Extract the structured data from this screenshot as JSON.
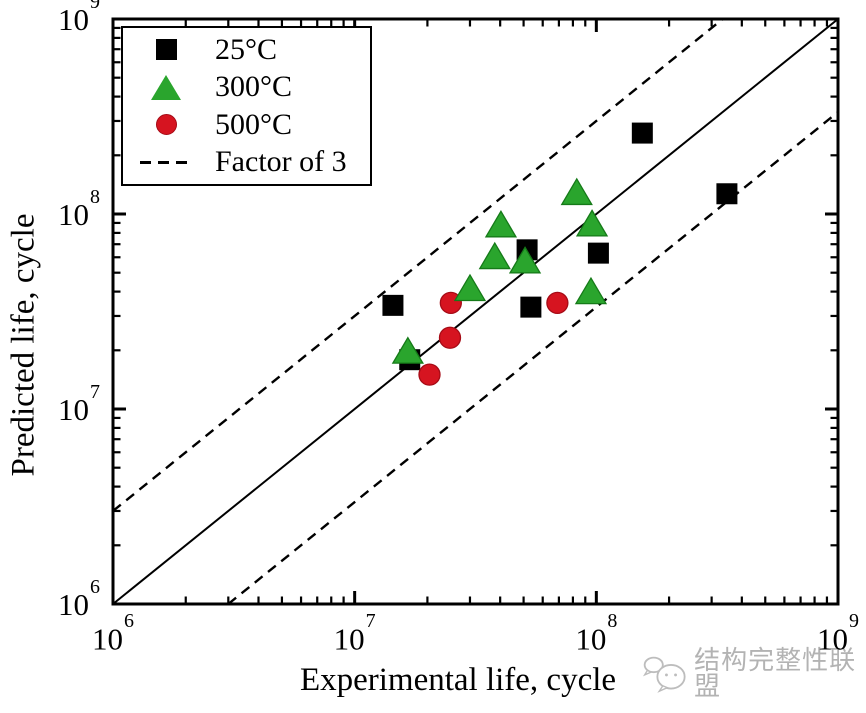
{
  "chart_data": {
    "type": "scatter",
    "title": "",
    "xlabel": "Experimental life, cycle",
    "ylabel": "Predicted life, cycle",
    "xscale": "log",
    "yscale": "log",
    "xlim": [
      1000000.0,
      1000000000.0
    ],
    "ylim": [
      1000000.0,
      1000000000.0
    ],
    "grid": false,
    "legend_position": "upper-left",
    "x_ticks": [
      {
        "mantissa": "10",
        "exponent": "6",
        "value": 1000000.0
      },
      {
        "mantissa": "10",
        "exponent": "7",
        "value": 10000000.0
      },
      {
        "mantissa": "10",
        "exponent": "8",
        "value": 100000000.0
      },
      {
        "mantissa": "10",
        "exponent": "9",
        "value": 1000000000.0
      }
    ],
    "y_ticks": [
      {
        "mantissa": "10",
        "exponent": "9",
        "value": 1000000000.0
      },
      {
        "mantissa": "10",
        "exponent": "8",
        "value": 100000000.0
      },
      {
        "mantissa": "10",
        "exponent": "7",
        "value": 10000000.0
      },
      {
        "mantissa": "10",
        "exponent": "6",
        "value": 1000000.0
      }
    ],
    "minor_tick_multiples": [
      2,
      3,
      4,
      5,
      6,
      7,
      8,
      9
    ],
    "series": [
      {
        "name": "25°C",
        "marker": "square",
        "color": "#000000",
        "edge": "#000000",
        "points": [
          [
            14400000.0,
            34000000.0
          ],
          [
            155000000.0,
            260000000.0
          ],
          [
            347000000.0,
            127000000.0
          ],
          [
            51700000.0,
            65500000.0
          ],
          [
            102000000.0,
            63000000.0
          ],
          [
            53600000.0,
            33300000.0
          ],
          [
            16900000.0,
            17900000.0
          ]
        ]
      },
      {
        "name": "300°C",
        "marker": "triangle",
        "color": "#2aa52d",
        "edge": "#157a18",
        "points": [
          [
            83000000.0,
            129000000.0
          ],
          [
            40300000.0,
            88000000.0
          ],
          [
            96000000.0,
            89000000.0
          ],
          [
            38000000.0,
            60500000.0
          ],
          [
            50700000.0,
            57500000.0
          ],
          [
            30000000.0,
            41500000.0
          ],
          [
            95000000.0,
            40000000.0
          ],
          [
            16600000.0,
            19800000.0
          ]
        ]
      },
      {
        "name": "500°C",
        "marker": "circle",
        "color": "#d61420",
        "edge": "#a60b16",
        "points": [
          [
            25000000.0,
            35000000.0
          ],
          [
            69000000.0,
            35000000.0
          ],
          [
            24800000.0,
            23200000.0
          ],
          [
            20400000.0,
            15000000.0
          ]
        ]
      }
    ],
    "reference_lines": [
      {
        "name": "identity",
        "style": "solid",
        "equation": "y = x"
      },
      {
        "name": "factor-of-3-upper",
        "style": "dashed",
        "equation": "y = 3x"
      },
      {
        "name": "factor-of-3-lower",
        "style": "dashed",
        "equation": "y = x/3"
      }
    ]
  },
  "legend": {
    "items": [
      {
        "label": "25°C",
        "marker": "square"
      },
      {
        "label": "300°C",
        "marker": "triangle"
      },
      {
        "label": "500°C",
        "marker": "circle"
      },
      {
        "label": "Factor of 3",
        "marker": "dashed-line"
      }
    ]
  },
  "watermark": {
    "text": "结构完整性联盟",
    "logo": "speech-bubbles-icon"
  },
  "colors": {
    "black": "#000000",
    "green": "#2aa52d",
    "green_edge": "#157a18",
    "red": "#d61420",
    "red_edge": "#a60b16",
    "watermark_gray": "#b3b3b3"
  }
}
